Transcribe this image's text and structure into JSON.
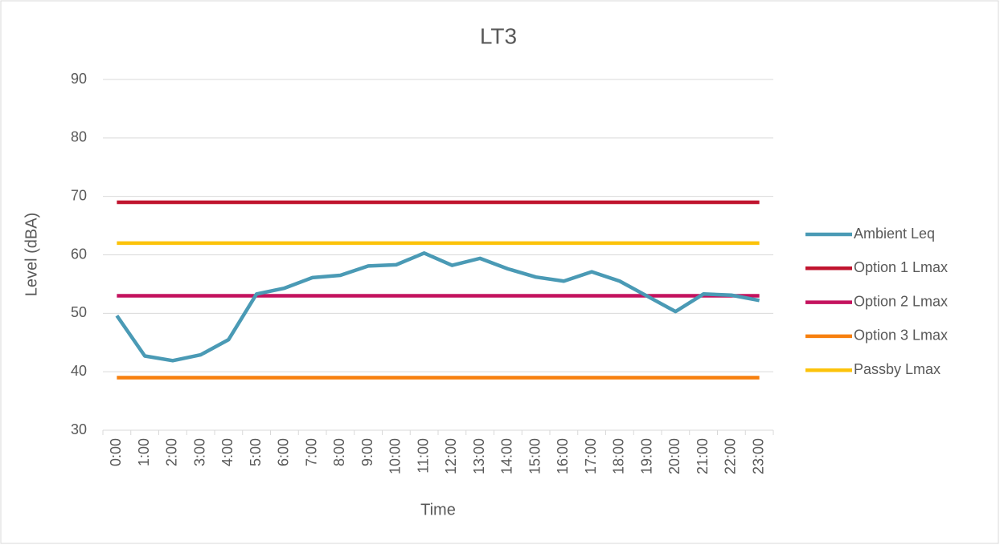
{
  "chart_data": {
    "type": "line",
    "title": "LT3",
    "x_label": "Time",
    "y_label": "Level (dBA)",
    "categories": [
      "0:00",
      "1:00",
      "2:00",
      "3:00",
      "4:00",
      "5:00",
      "6:00",
      "7:00",
      "8:00",
      "9:00",
      "10:00",
      "11:00",
      "12:00",
      "13:00",
      "14:00",
      "15:00",
      "16:00",
      "17:00",
      "18:00",
      "19:00",
      "20:00",
      "21:00",
      "22:00",
      "23:00"
    ],
    "series": [
      {
        "name": "Ambient Leq",
        "color": "#4a9ab5",
        "values": [
          49.6,
          42.7,
          41.9,
          42.9,
          45.5,
          53.3,
          54.3,
          56.1,
          56.5,
          58.1,
          58.3,
          60.3,
          58.2,
          59.4,
          57.6,
          56.2,
          55.5,
          57.1,
          55.5,
          52.9,
          50.3,
          53.3,
          53.1,
          52.2
        ]
      },
      {
        "name": "Option 1 Lmax",
        "color": "#c0142e",
        "values": [
          69,
          69,
          69,
          69,
          69,
          69,
          69,
          69,
          69,
          69,
          69,
          69,
          69,
          69,
          69,
          69,
          69,
          69,
          69,
          69,
          69,
          69,
          69,
          69
        ]
      },
      {
        "name": "Option 2 Lmax",
        "color": "#c4125e",
        "values": [
          53,
          53,
          53,
          53,
          53,
          53,
          53,
          53,
          53,
          53,
          53,
          53,
          53,
          53,
          53,
          53,
          53,
          53,
          53,
          53,
          53,
          53,
          53,
          53
        ]
      },
      {
        "name": "Option 3 Lmax",
        "color": "#f7800f",
        "values": [
          39,
          39,
          39,
          39,
          39,
          39,
          39,
          39,
          39,
          39,
          39,
          39,
          39,
          39,
          39,
          39,
          39,
          39,
          39,
          39,
          39,
          39,
          39,
          39
        ]
      },
      {
        "name": "Passby Lmax",
        "color": "#fcc30a",
        "values": [
          62,
          62,
          62,
          62,
          62,
          62,
          62,
          62,
          62,
          62,
          62,
          62,
          62,
          62,
          62,
          62,
          62,
          62,
          62,
          62,
          62,
          62,
          62,
          62
        ]
      }
    ],
    "ylim": [
      30,
      90
    ],
    "yticks": [
      30,
      40,
      50,
      60,
      70,
      80,
      90
    ],
    "grid": true,
    "legend": "right"
  }
}
